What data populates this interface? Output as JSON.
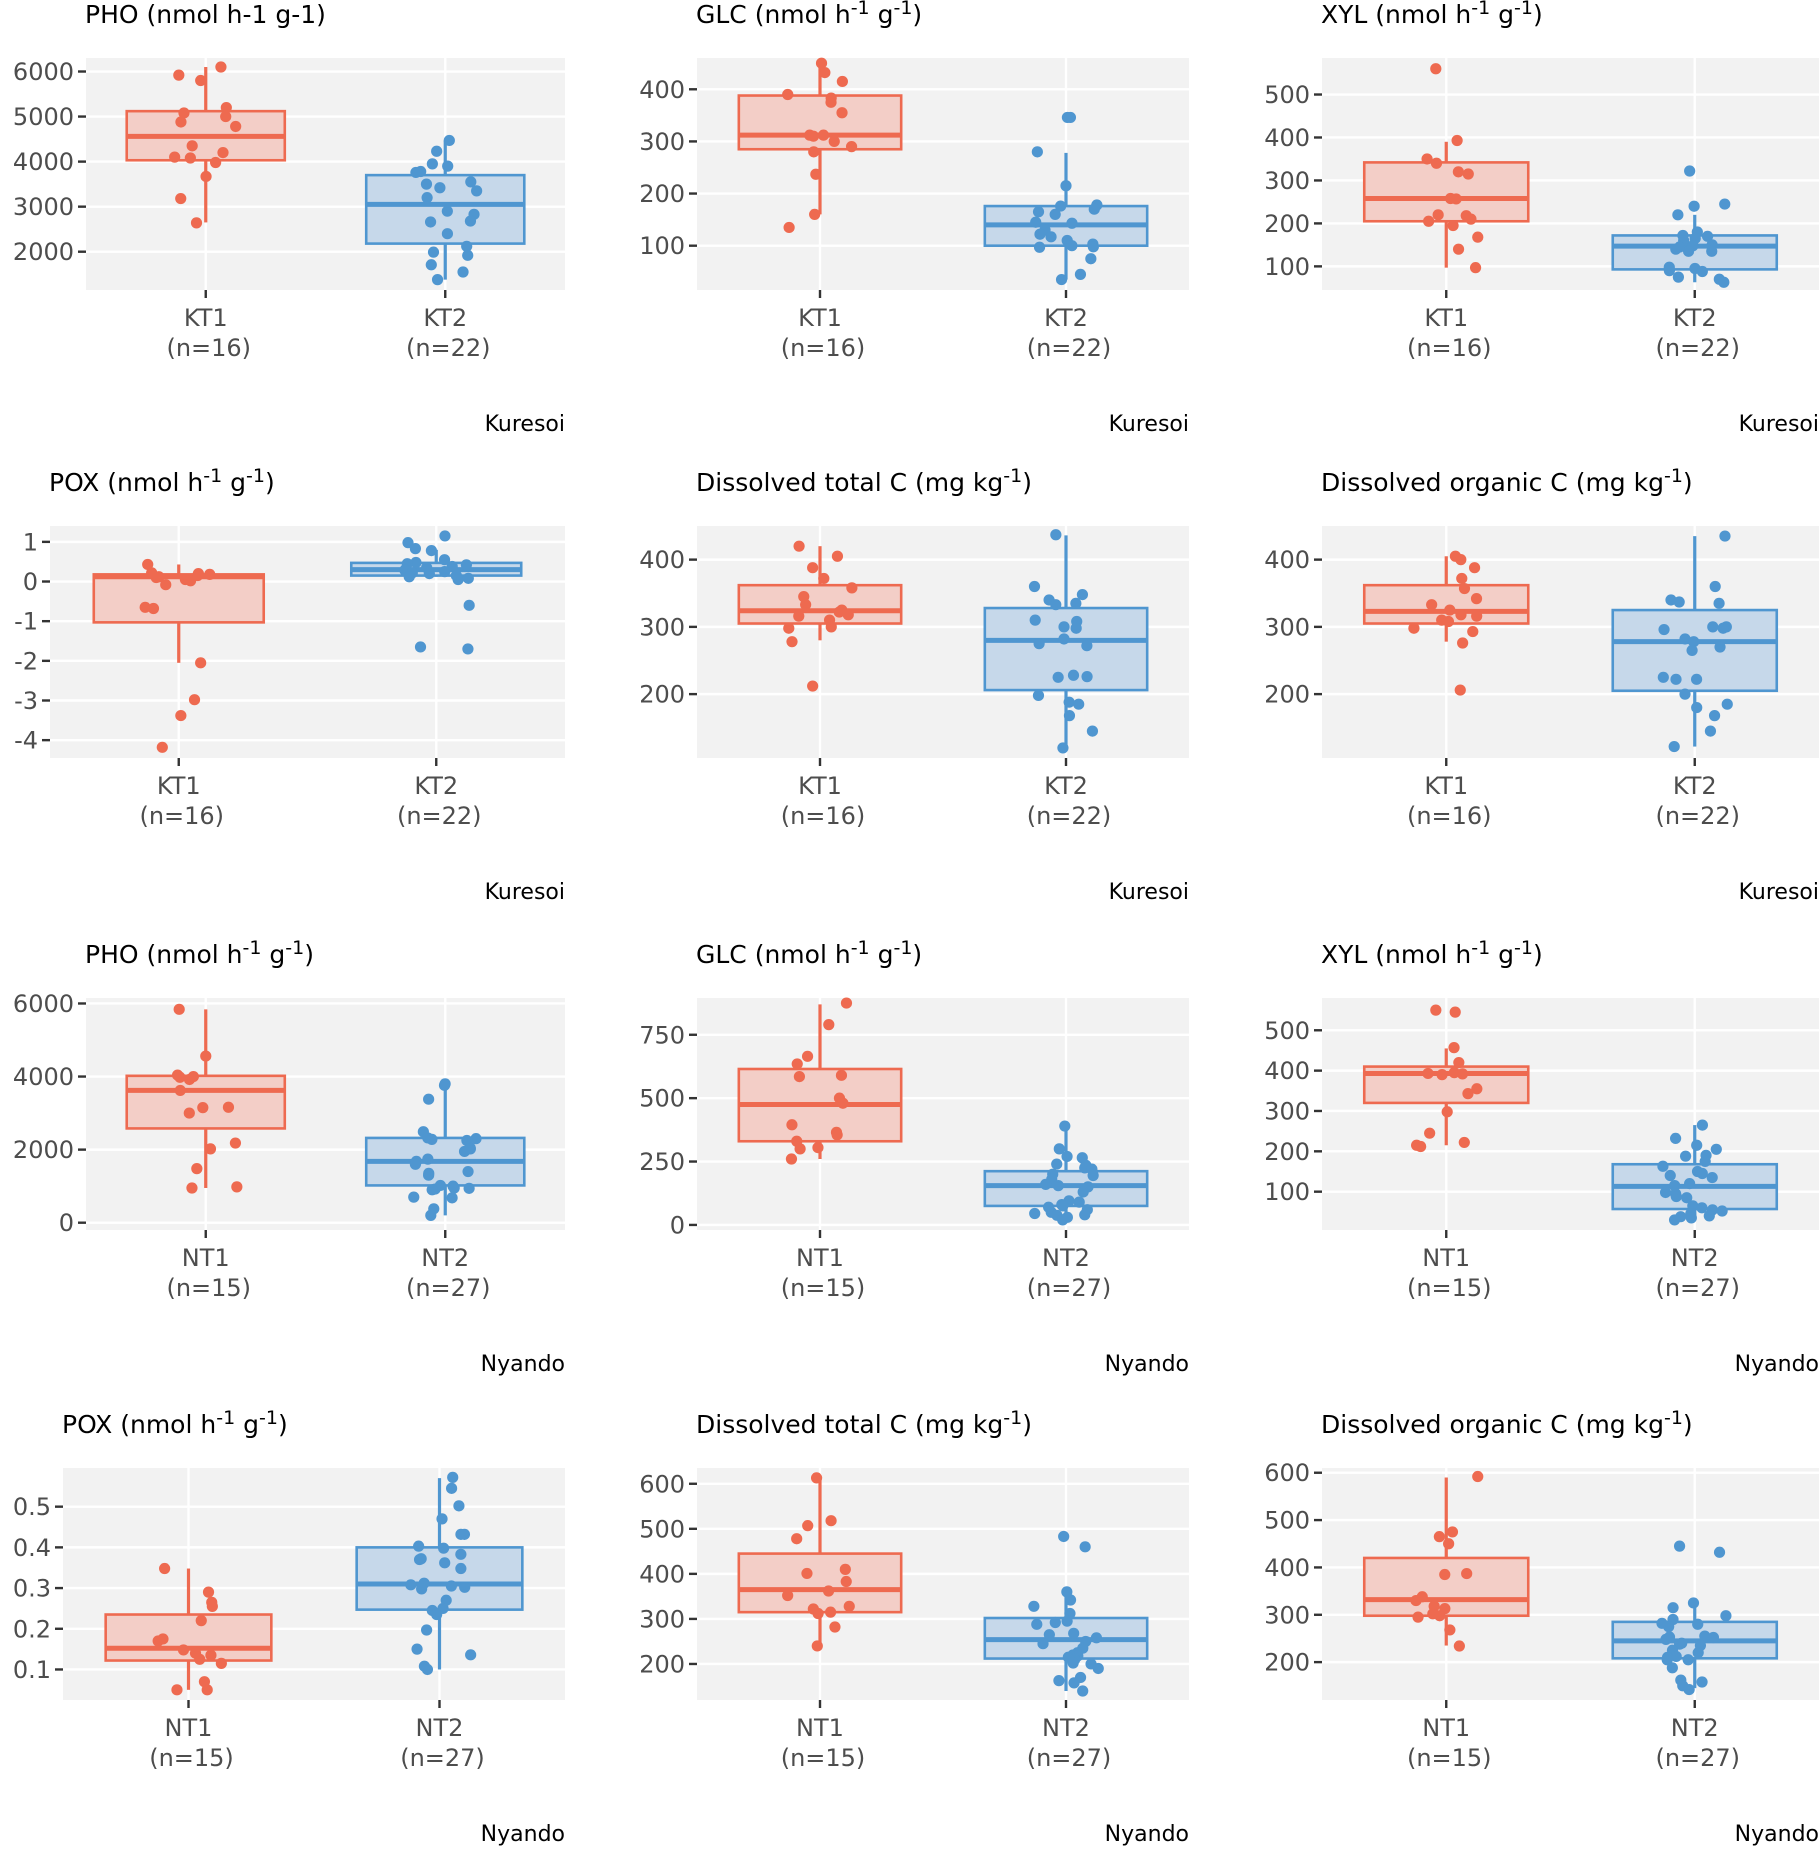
{
  "figure": {
    "colors": {
      "group1": "#EE6A50",
      "group1_fill": "#F2CBC4",
      "group2": "#4F96D0",
      "group2_fill": "#C3D6E9",
      "panel_bg": "#F2F2F2",
      "grid": "#FFFFFF",
      "axis_text": "#4D4D4D"
    }
  },
  "chart_data": [
    {
      "type": "box",
      "site": "Kuresoi",
      "title": "PHO (nmol h-1 g-1)",
      "title_parts": [
        "PHO (nmol h-1 g-1)"
      ],
      "ylim": [
        1150,
        6300
      ],
      "yticks": [
        2000,
        3000,
        4000,
        5000,
        6000
      ],
      "groups": [
        {
          "name": "KT1",
          "n_label": "(n=16)",
          "q1": 4030,
          "median": 4560,
          "q3": 5120,
          "whisker_low": 2650,
          "whisker_high": 6100,
          "points": [
            6100,
            5920,
            5800,
            5200,
            5080,
            5000,
            4880,
            4780,
            4350,
            4200,
            4100,
            4080,
            3980,
            3670,
            3180,
            2640
          ]
        },
        {
          "name": "KT2",
          "n_label": "(n=22)",
          "q1": 2180,
          "median": 3050,
          "q3": 3700,
          "whisker_low": 1380,
          "whisker_high": 4470,
          "points": [
            4470,
            4230,
            3950,
            3900,
            3780,
            3760,
            3550,
            3500,
            3420,
            3350,
            3200,
            2900,
            2830,
            2680,
            2660,
            2400,
            2120,
            1990,
            1920,
            1710,
            1550,
            1380
          ]
        }
      ]
    },
    {
      "type": "box",
      "site": "Kuresoi",
      "title": "GLC (nmol h-1 g-1)",
      "title_main": "GLC (nmol h",
      "title_sup1": "-1",
      "title_mid": " g",
      "title_sup2": "-1",
      "title_end": ")",
      "ylim": [
        15,
        460
      ],
      "yticks": [
        100,
        200,
        300,
        400
      ],
      "groups": [
        {
          "name": "KT1",
          "n_label": "(n=16)",
          "q1": 285,
          "median": 312,
          "q3": 388,
          "whisker_low": 160,
          "whisker_high": 450,
          "points": [
            450,
            432,
            415,
            390,
            383,
            375,
            355,
            312,
            310,
            300,
            290,
            280,
            237,
            160,
            135,
            312
          ]
        },
        {
          "name": "KT2",
          "n_label": "(n=22)",
          "q1": 100,
          "median": 140,
          "q3": 176,
          "whisker_low": 35,
          "whisker_high": 278,
          "points": [
            346,
            346,
            280,
            215,
            178,
            176,
            170,
            165,
            160,
            145,
            143,
            130,
            122,
            117,
            110,
            103,
            100,
            98,
            97,
            75,
            45,
            35
          ]
        }
      ]
    },
    {
      "type": "box",
      "site": "Kuresoi",
      "title": "XYL (nmol h-1 g-1)",
      "title_main": "XYL (nmol h",
      "title_sup1": "-1",
      "title_mid": " g",
      "title_sup2": "-1",
      "title_end": ")",
      "ylim": [
        45,
        585
      ],
      "yticks": [
        100,
        200,
        300,
        400,
        500
      ],
      "groups": [
        {
          "name": "KT1",
          "n_label": "(n=16)",
          "q1": 205,
          "median": 258,
          "q3": 342,
          "whisker_low": 97,
          "whisker_high": 390,
          "points": [
            560,
            393,
            350,
            340,
            320,
            315,
            258,
            257,
            220,
            218,
            210,
            195,
            168,
            140,
            97,
            205
          ]
        },
        {
          "name": "KT2",
          "n_label": "(n=22)",
          "q1": 93,
          "median": 147,
          "q3": 172,
          "whisker_low": 63,
          "whisker_high": 220,
          "points": [
            322,
            245,
            240,
            220,
            180,
            172,
            170,
            165,
            160,
            150,
            148,
            145,
            140,
            135,
            135,
            98,
            95,
            90,
            88,
            75,
            70,
            63
          ]
        }
      ]
    },
    {
      "type": "box",
      "site": "Kuresoi",
      "title": "POX (nmol h-1 g-1)",
      "title_main": "POX (nmol h",
      "title_sup1": "-1",
      "title_mid": " g",
      "title_sup2": "-1",
      "title_end": ")",
      "ylim": [
        -4.45,
        1.4
      ],
      "yticks": [
        1,
        0,
        -1,
        -2,
        -3,
        -4
      ],
      "groups": [
        {
          "name": "KT1",
          "n_label": "(n=16)",
          "q1": -1.03,
          "median": 0.12,
          "q3": 0.18,
          "whisker_low": -2.05,
          "whisker_high": 0.43,
          "points": [
            0.43,
            0.22,
            0.2,
            0.18,
            0.15,
            0.12,
            0.1,
            0.05,
            0.02,
            -0.08,
            -0.65,
            -0.68,
            -2.05,
            -2.98,
            -3.38,
            -4.18
          ]
        },
        {
          "name": "KT2",
          "n_label": "(n=22)",
          "q1": 0.15,
          "median": 0.3,
          "q3": 0.47,
          "whisker_low": 0.12,
          "whisker_high": 0.8,
          "points": [
            1.15,
            0.98,
            0.83,
            0.78,
            0.55,
            0.48,
            0.45,
            0.42,
            0.38,
            0.35,
            0.3,
            0.28,
            0.25,
            0.22,
            0.2,
            0.15,
            0.12,
            0.08,
            0.05,
            -0.6,
            -1.65,
            -1.7
          ]
        }
      ]
    },
    {
      "type": "box",
      "site": "Kuresoi",
      "title": "Dissolved total C (mg kg-1)",
      "title_main": "Dissolved total C (mg kg",
      "title_sup1": "-1",
      "title_end": ")",
      "ylim": [
        105,
        450
      ],
      "yticks": [
        200,
        300,
        400
      ],
      "groups": [
        {
          "name": "KT1",
          "n_label": "(n=16)",
          "q1": 305,
          "median": 324,
          "q3": 362,
          "whisker_low": 280,
          "whisker_high": 420,
          "points": [
            420,
            405,
            388,
            372,
            358,
            345,
            333,
            325,
            318,
            316,
            310,
            300,
            298,
            278,
            212,
            322
          ]
        },
        {
          "name": "KT2",
          "n_label": "(n=22)",
          "q1": 206,
          "median": 280,
          "q3": 328,
          "whisker_low": 120,
          "whisker_high": 436,
          "points": [
            437,
            360,
            348,
            340,
            335,
            333,
            310,
            308,
            300,
            298,
            282,
            275,
            272,
            228,
            226,
            225,
            198,
            188,
            185,
            168,
            145,
            120
          ]
        }
      ]
    },
    {
      "type": "box",
      "site": "Kuresoi",
      "title": "Dissolved organic C (mg kg-1)",
      "title_main": "Dissolved organic C (mg kg",
      "title_sup1": "-1",
      "title_end": ")",
      "ylim": [
        105,
        450
      ],
      "yticks": [
        200,
        300,
        400
      ],
      "groups": [
        {
          "name": "KT1",
          "n_label": "(n=16)",
          "q1": 305,
          "median": 323,
          "q3": 362,
          "whisker_low": 278,
          "whisker_high": 405,
          "points": [
            405,
            400,
            388,
            372,
            357,
            342,
            333,
            325,
            318,
            316,
            310,
            308,
            298,
            293,
            276,
            206
          ]
        },
        {
          "name": "KT2",
          "n_label": "(n=22)",
          "q1": 205,
          "median": 278,
          "q3": 325,
          "whisker_low": 122,
          "whisker_high": 435,
          "points": [
            435,
            360,
            340,
            337,
            335,
            300,
            298,
            296,
            282,
            278,
            270,
            265,
            225,
            222,
            222,
            200,
            185,
            180,
            168,
            145,
            122,
            300
          ]
        }
      ]
    },
    {
      "type": "box",
      "site": "Nyando",
      "title": "PHO (nmol h-1 g-1)",
      "title_main": "PHO (nmol h",
      "title_sup1": "-1",
      "title_mid": " g",
      "title_sup2": "-1",
      "title_end": ")",
      "ylim": [
        -200,
        6150
      ],
      "yticks": [
        0,
        2000,
        4000,
        6000
      ],
      "groups": [
        {
          "name": "NT1",
          "n_label": "(n=15)",
          "q1": 2580,
          "median": 3620,
          "q3": 4020,
          "whisker_low": 950,
          "whisker_high": 5840,
          "points": [
            5840,
            4560,
            4040,
            4000,
            3980,
            3920,
            3620,
            3160,
            3150,
            3000,
            2180,
            2020,
            1480,
            950,
            980
          ]
        },
        {
          "name": "NT2",
          "n_label": "(n=27)",
          "q1": 1020,
          "median": 1680,
          "q3": 2320,
          "whisker_low": 200,
          "whisker_high": 3720,
          "points": [
            3800,
            3760,
            3380,
            2490,
            2320,
            2300,
            2280,
            2250,
            2050,
            2020,
            1950,
            1740,
            1680,
            1600,
            1400,
            1350,
            1300,
            1020,
            1000,
            950,
            940,
            920,
            900,
            700,
            680,
            380,
            200
          ]
        }
      ]
    },
    {
      "type": "box",
      "site": "Nyando",
      "title": "GLC (nmol h-1 g-1)",
      "title_main": "GLC (nmol h",
      "title_sup1": "-1",
      "title_mid": " g",
      "title_sup2": "-1",
      "title_end": ")",
      "ylim": [
        -20,
        895
      ],
      "yticks": [
        0,
        250,
        500,
        750
      ],
      "groups": [
        {
          "name": "NT1",
          "n_label": "(n=15)",
          "q1": 330,
          "median": 475,
          "q3": 615,
          "whisker_low": 260,
          "whisker_high": 870,
          "points": [
            875,
            790,
            665,
            635,
            590,
            585,
            500,
            480,
            395,
            365,
            355,
            330,
            305,
            300,
            260
          ]
        },
        {
          "name": "NT2",
          "n_label": "(n=27)",
          "q1": 75,
          "median": 155,
          "q3": 212,
          "whisker_low": 20,
          "whisker_high": 385,
          "points": [
            390,
            300,
            270,
            265,
            240,
            235,
            225,
            220,
            200,
            195,
            180,
            160,
            155,
            150,
            130,
            95,
            90,
            80,
            75,
            70,
            60,
            50,
            45,
            40,
            38,
            30,
            20
          ]
        }
      ]
    },
    {
      "type": "box",
      "site": "Nyando",
      "title": "XYL (nmol h-1 g-1)",
      "title_main": "XYL (nmol h",
      "title_sup1": "-1",
      "title_mid": " g",
      "title_sup2": "-1",
      "title_end": ")",
      "ylim": [
        5,
        580
      ],
      "yticks": [
        100,
        200,
        300,
        400,
        500
      ],
      "groups": [
        {
          "name": "NT1",
          "n_label": "(n=15)",
          "q1": 320,
          "median": 393,
          "q3": 410,
          "whisker_low": 215,
          "whisker_high": 455,
          "points": [
            550,
            545,
            457,
            420,
            395,
            393,
            392,
            390,
            355,
            343,
            298,
            245,
            222,
            215,
            212
          ]
        },
        {
          "name": "NT2",
          "n_label": "(n=27)",
          "q1": 57,
          "median": 113,
          "q3": 168,
          "whisker_low": 30,
          "whisker_high": 265,
          "points": [
            265,
            232,
            215,
            205,
            190,
            188,
            175,
            163,
            150,
            145,
            140,
            135,
            120,
            115,
            98,
            95,
            88,
            85,
            65,
            60,
            55,
            52,
            45,
            40,
            38,
            35,
            30
          ]
        }
      ]
    },
    {
      "type": "box",
      "site": "Nyando",
      "title": "POX (nmol h-1 g-1)",
      "title_main": "POX (nmol h",
      "title_sup1": "-1",
      "title_mid": " g",
      "title_sup2": "-1",
      "title_end": ")",
      "ylim": [
        0.025,
        0.595
      ],
      "yticks": [
        0.1,
        0.2,
        0.3,
        0.4,
        0.5
      ],
      "groups": [
        {
          "name": "NT1",
          "n_label": "(n=15)",
          "q1": 0.122,
          "median": 0.152,
          "q3": 0.235,
          "whisker_low": 0.05,
          "whisker_high": 0.348,
          "points": [
            0.348,
            0.29,
            0.265,
            0.255,
            0.22,
            0.175,
            0.17,
            0.148,
            0.14,
            0.135,
            0.125,
            0.115,
            0.07,
            0.05,
            0.05
          ]
        },
        {
          "name": "NT2",
          "n_label": "(n=27)",
          "q1": 0.247,
          "median": 0.31,
          "q3": 0.4,
          "whisker_low": 0.1,
          "whisker_high": 0.57,
          "points": [
            0.572,
            0.545,
            0.502,
            0.47,
            0.432,
            0.432,
            0.403,
            0.398,
            0.383,
            0.372,
            0.37,
            0.362,
            0.348,
            0.312,
            0.308,
            0.305,
            0.302,
            0.298,
            0.27,
            0.25,
            0.245,
            0.235,
            0.197,
            0.15,
            0.136,
            0.108,
            0.1
          ]
        }
      ]
    },
    {
      "type": "box",
      "site": "Nyando",
      "title": "Dissolved total C (mg kg-1)",
      "title_main": "Dissolved total C (mg kg",
      "title_sup1": "-1",
      "title_end": ")",
      "ylim": [
        120,
        635
      ],
      "yticks": [
        200,
        300,
        400,
        500,
        600
      ],
      "groups": [
        {
          "name": "NT1",
          "n_label": "(n=15)",
          "q1": 315,
          "median": 365,
          "q3": 445,
          "whisker_low": 240,
          "whisker_high": 612,
          "points": [
            613,
            518,
            507,
            478,
            410,
            401,
            383,
            362,
            352,
            328,
            322,
            315,
            312,
            282,
            240
          ]
        },
        {
          "name": "NT2",
          "n_label": "(n=27)",
          "q1": 212,
          "median": 254,
          "q3": 302,
          "whisker_low": 140,
          "whisker_high": 355,
          "points": [
            483,
            460,
            360,
            342,
            328,
            312,
            295,
            292,
            288,
            268,
            265,
            258,
            250,
            245,
            235,
            225,
            220,
            218,
            215,
            210,
            202,
            200,
            190,
            170,
            163,
            158,
            140
          ]
        }
      ]
    },
    {
      "type": "box",
      "site": "Nyando",
      "title": "Dissolved organic C (mg kg-1)",
      "title_main": "Dissolved organic C (mg kg",
      "title_sup1": "-1",
      "title_end": ")",
      "ylim": [
        120,
        610
      ],
      "yticks": [
        200,
        300,
        400,
        500,
        600
      ],
      "groups": [
        {
          "name": "NT1",
          "n_label": "(n=15)",
          "q1": 298,
          "median": 332,
          "q3": 420,
          "whisker_low": 235,
          "whisker_high": 590,
          "points": [
            592,
            475,
            465,
            450,
            387,
            385,
            338,
            330,
            318,
            313,
            302,
            298,
            295,
            268,
            234
          ]
        },
        {
          "name": "NT2",
          "n_label": "(n=27)",
          "q1": 208,
          "median": 245,
          "q3": 285,
          "whisker_low": 145,
          "whisker_high": 322,
          "points": [
            445,
            432,
            325,
            315,
            298,
            290,
            282,
            280,
            275,
            255,
            253,
            252,
            248,
            240,
            238,
            235,
            225,
            220,
            212,
            210,
            205,
            205,
            188,
            162,
            158,
            150,
            142
          ]
        }
      ]
    }
  ]
}
